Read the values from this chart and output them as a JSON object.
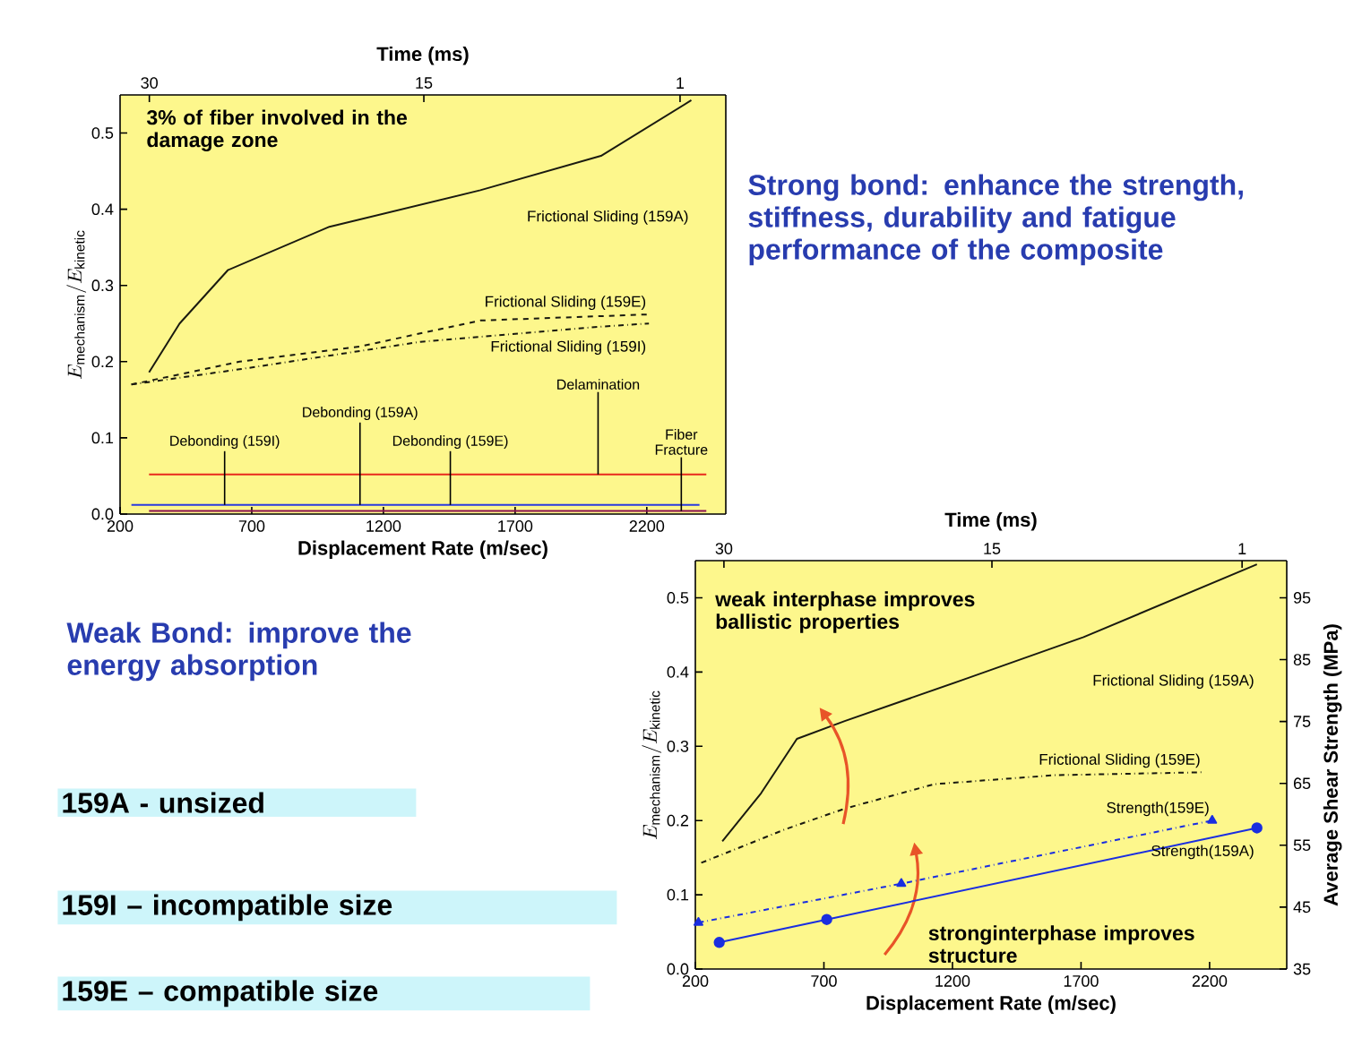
{
  "chart_data": [
    {
      "type": "line",
      "xlabel": "Displacement Rate (m/sec)",
      "ylabel": "E_{\\mathrm{mechanism}}/E_{\\mathrm{kinetic}}",
      "x2label": "Time (ms)",
      "xlim": [
        200,
        2500
      ],
      "xticks": [
        200,
        700,
        1200,
        1700,
        2200
      ],
      "ylim": [
        0,
        0.55
      ],
      "yticks": [
        {
          "value": 0,
          "label": "0.0"
        },
        0.1,
        0.2,
        0.3,
        0.4,
        0.5
      ],
      "x2lim": [
        31.6,
        -1.5
      ],
      "x2ticks": [
        30,
        15,
        1
      ],
      "series": [
        {
          "name": "Frictional Sliding (159A)",
          "color": "#1a1a10",
          "line_style": "solid",
          "x": [
            310,
            426,
            609,
            995,
            1568,
            2026,
            2369
          ],
          "values": [
            0.186,
            0.25,
            0.32,
            0.377,
            0.425,
            0.47,
            0.543
          ]
        },
        {
          "name": "Frictional Sliding (159E)",
          "color": "#1a1a10",
          "line_style": "dashed",
          "x": [
            243,
            654,
            1111,
            1568,
            2208
          ],
          "values": [
            0.17,
            0.2,
            0.22,
            0.254,
            0.262
          ]
        },
        {
          "name": "Frictional Sliding (159I)",
          "color": "#1a1a10",
          "line_style": "dotted",
          "x": [
            243,
            654,
            1340,
            2026,
            2208
          ],
          "values": [
            0.17,
            0.19,
            0.226,
            0.246,
            0.25
          ]
        },
        {
          "color": "#e8281c",
          "line_style": "solid",
          "x": [
            310,
            2426
          ],
          "values": [
            0.052,
            0.052
          ]
        },
        {
          "color": "#2a3ae0",
          "line_style": "solid",
          "x": [
            243,
            2400
          ],
          "values": [
            0.012,
            0.012
          ]
        },
        {
          "color": "#8a1050",
          "line_style": "solid",
          "x": [
            310,
            2426
          ],
          "values": [
            0.004,
            0.004
          ]
        }
      ],
      "annotations": [
        "3% of fiber involved in the damage zone",
        {
          "text": "Debonding (159I)",
          "x": 597,
          "y": 0.012
        },
        {
          "text": "Debonding (159A)",
          "x": 1111,
          "y": 0.012
        },
        {
          "text": "Debonding (159E)",
          "x": 1454,
          "y": 0.012
        },
        {
          "text": "Delamination",
          "x": 2015,
          "y": 0.052
        },
        {
          "text": "Fiber Fracture",
          "x": 2331,
          "y": 0.004
        }
      ]
    },
    {
      "type": "line",
      "xlabel": "Displacement Rate (m/sec)",
      "ylabel": "E_{\\mathrm{mechanism}}/E_{\\mathrm{kinetic}}",
      "y2label": "Average Shear Strength (MPa)",
      "x2label": "Time (ms)",
      "xlim": [
        200,
        2500
      ],
      "xticks": [
        200,
        700,
        1200,
        1700,
        2200
      ],
      "ylim": [
        0,
        0.55
      ],
      "yticks": [
        {
          "value": 0,
          "label": "0.0"
        },
        0.1,
        0.2,
        0.3,
        0.4,
        0.5
      ],
      "y2lim": [
        35,
        101
      ],
      "y2ticks": [
        35,
        45,
        55,
        65,
        75,
        85,
        95
      ],
      "x2lim": [
        31.6,
        -1.5
      ],
      "x2ticks": [
        30,
        15,
        1
      ],
      "series": [
        {
          "name": "Frictional Sliding (159A)",
          "color": "#1a1a10",
          "line_style": "solid",
          "marker": "none",
          "x": [
            305,
            456,
            595,
            781,
            1245,
            1710,
            2384
          ],
          "values": [
            0.172,
            0.237,
            0.31,
            0.334,
            0.39,
            0.447,
            0.545
          ]
        },
        {
          "name": "Frictional Sliding (159E)",
          "color": "#1a1a10",
          "line_style": "dotted",
          "marker": "none",
          "x": [
            223,
            548,
            781,
            1129,
            1594,
            2175
          ],
          "values": [
            0.143,
            0.188,
            0.216,
            0.249,
            0.261,
            0.265
          ]
        },
        {
          "name": "Strength(159A)",
          "color": "#1a2ee0",
          "line_style": "solid",
          "marker": "circle",
          "axis": "y2",
          "x": [
            293,
            711,
            2384
          ],
          "values": [
            39.3,
            43,
            57.8
          ]
        },
        {
          "name": "Strength(159E)",
          "color": "#1a2ee0",
          "line_style": "dotted",
          "marker": "triangle",
          "axis": "y2",
          "x": [
            212,
            1001,
            2210
          ],
          "values": [
            42.5,
            48.8,
            59
          ]
        }
      ],
      "annotations": [
        "weak interphase improves ballistic properties",
        "stronginterphase improves structure"
      ]
    },
    {
      "type": "other",
      "annotations": [
        "Strong bond: enhance the strength, stiffness, durability and fatigue performance of the composite",
        "Weak Bond: improve the energy absorption",
        "159A - unsized",
        "159I – incompatible size",
        "159E – compatible size"
      ]
    }
  ]
}
